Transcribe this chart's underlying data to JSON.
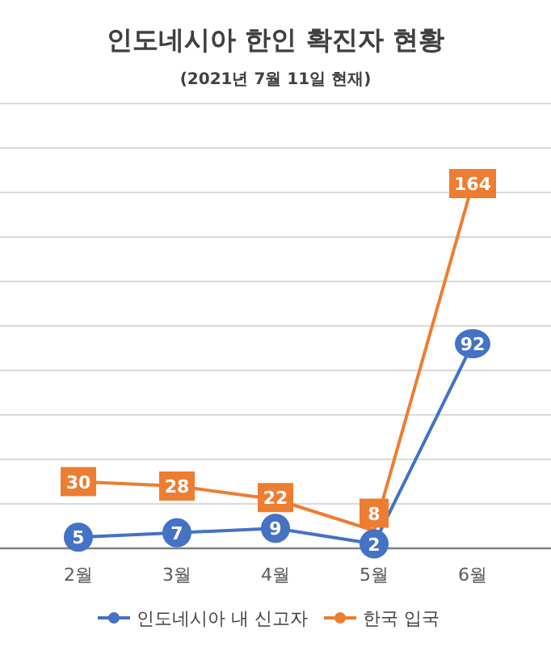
{
  "chart_data": {
    "type": "line",
    "title": "인도네시아 한인 확진자 현황",
    "subtitle": "(2021년 7월 11일 현재)",
    "categories": [
      "2월",
      "3월",
      "4월",
      "5월",
      "6월"
    ],
    "series": [
      {
        "name": "인도네시아 내 신고자",
        "color": "#4472c4",
        "marker": "circle",
        "values": [
          5,
          7,
          9,
          2,
          92
        ]
      },
      {
        "name": "한국 입국",
        "color": "#ed7d31",
        "marker": "square",
        "values": [
          30,
          28,
          22,
          8,
          164
        ]
      }
    ],
    "ylim": [
      0,
      200
    ],
    "yticks": [
      {
        "value": 0,
        "label": null
      },
      {
        "value": 20,
        "label": null
      },
      {
        "value": 40,
        "label": null
      },
      {
        "value": 60,
        "label": null
      },
      {
        "value": 80,
        "label": null
      },
      {
        "value": 100,
        "label": null
      },
      {
        "value": 120,
        "label": null
      },
      {
        "value": 140,
        "label": null
      },
      {
        "value": 160,
        "label": null
      },
      {
        "value": 180,
        "label": null
      },
      {
        "value": 200,
        "label": null
      }
    ],
    "tick_labels": "x",
    "grid": "y",
    "legend": "bottom",
    "line_style": "solid",
    "data_labels": true
  }
}
